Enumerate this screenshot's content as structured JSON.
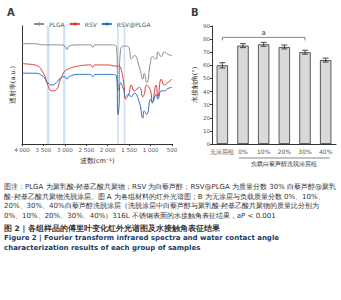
{
  "chart_data": [
    {
      "type": "line",
      "panel_label": "A",
      "x_label": "波数(cm⁻¹)",
      "y_label": "透射率(a.u.)",
      "x": [
        4000,
        3700,
        3500,
        3400,
        3300,
        3200,
        3100,
        3000,
        2950,
        2900,
        2700,
        2400,
        2350,
        2300,
        2000,
        1800,
        1760,
        1740,
        1700,
        1620,
        1590,
        1510,
        1450,
        1380,
        1260,
        1180,
        1150,
        1090,
        1000,
        960,
        870,
        830,
        750,
        680,
        600,
        500
      ],
      "series": [
        {
          "name": "PLGA",
          "color": "#8c8c8c",
          "values": [
            85,
            85,
            84,
            84,
            84,
            84,
            84,
            83,
            80,
            83,
            84,
            84,
            82,
            84,
            84,
            83,
            45,
            50,
            80,
            83,
            83,
            82,
            72,
            75,
            65,
            55,
            60,
            52,
            70,
            74,
            72,
            78,
            74,
            78,
            76,
            75
          ]
        },
        {
          "name": "RSV",
          "color": "#e0403a",
          "values": [
            68,
            67,
            60,
            50,
            45,
            46,
            55,
            62,
            63,
            64,
            66,
            67,
            65,
            67,
            67,
            66,
            66,
            66,
            65,
            50,
            38,
            42,
            50,
            45,
            48,
            40,
            42,
            50,
            45,
            35,
            50,
            40,
            55,
            50,
            52,
            55
          ]
        },
        {
          "name": "RSV@PLGA",
          "color": "#2f6fc4",
          "values": [
            60,
            60,
            57,
            52,
            50,
            52,
            56,
            57,
            55,
            57,
            59,
            59,
            57,
            59,
            59,
            58,
            25,
            30,
            52,
            45,
            40,
            42,
            40,
            43,
            35,
            22,
            28,
            25,
            38,
            35,
            42,
            38,
            45,
            45,
            47,
            48
          ]
        }
      ],
      "bands": [
        [
          3420,
          3360
        ],
        [
          3040,
          2990
        ],
        [
          1780,
          1740
        ],
        [
          1630,
          1590
        ]
      ],
      "xlim": [
        4000,
        500
      ],
      "xticks": [
        {
          "value": 4000,
          "label": "4 000"
        },
        {
          "value": 3500,
          "label": "3 500"
        },
        {
          "value": 3000,
          "label": "3 000"
        },
        {
          "value": 2500,
          "label": "2 500"
        },
        {
          "value": 2000,
          "label": "2 000"
        },
        {
          "value": 1500,
          "label": "1 500"
        },
        {
          "value": 1000,
          "label": "1 000"
        },
        500
      ],
      "ylim": [
        0,
        100
      ],
      "yticks": [],
      "tick_labels": "x",
      "legend": "top",
      "grid": false
    },
    {
      "type": "bar",
      "panel_label": "B",
      "y_label": "水接触角(°)",
      "categories": [
        "无涂层组",
        "0%",
        "10%",
        "20%",
        "30%",
        "40%"
      ],
      "values": [
        60,
        75,
        76,
        74,
        70,
        64
      ],
      "errors": [
        2,
        1.5,
        1.5,
        1.5,
        1.5,
        1.5
      ],
      "color": "#d9d9d9",
      "group_label": {
        "text": "负载白藜芦醇洗脱涂层组",
        "from": "0%",
        "to": "40%"
      },
      "annotations": [
        {
          "text": "a",
          "from": "无涂层组",
          "to": "30%"
        }
      ],
      "ylim": [
        0,
        90
      ],
      "yticks": [
        0,
        10,
        20,
        30,
        40,
        50,
        60,
        70,
        80,
        90
      ],
      "grid": false
    }
  ],
  "caption": {
    "note": "图注：PLGA 为聚乳酸-羟基乙酸共聚物；RSV 为白藜芦醇；RSV@PLGA 为质量分数 30% 白藜芦醇@聚乳酸-羟基乙酸共聚物洗脱涂层。图 A 为各组材料的红外光谱图；B 为无涂层与负载质量分数 0%、10%、20%、30%、40%白藜芦醇洗脱涂层（洗脱涂层中白藜芦醇与聚乳酸-羟基乙酸共聚物的质量比分别为 0%、10%、20%、30%、40%）316L 不锈钢表面的水接触角表征结果，aP < 0.001",
    "title": "图 2 | 各组样品的傅里叶变化红外光谱图及水接触角表征结果",
    "title_en": "Figure 2 | Fourier transform infrared spectra and water contact angle characterization results of each group of samples"
  }
}
